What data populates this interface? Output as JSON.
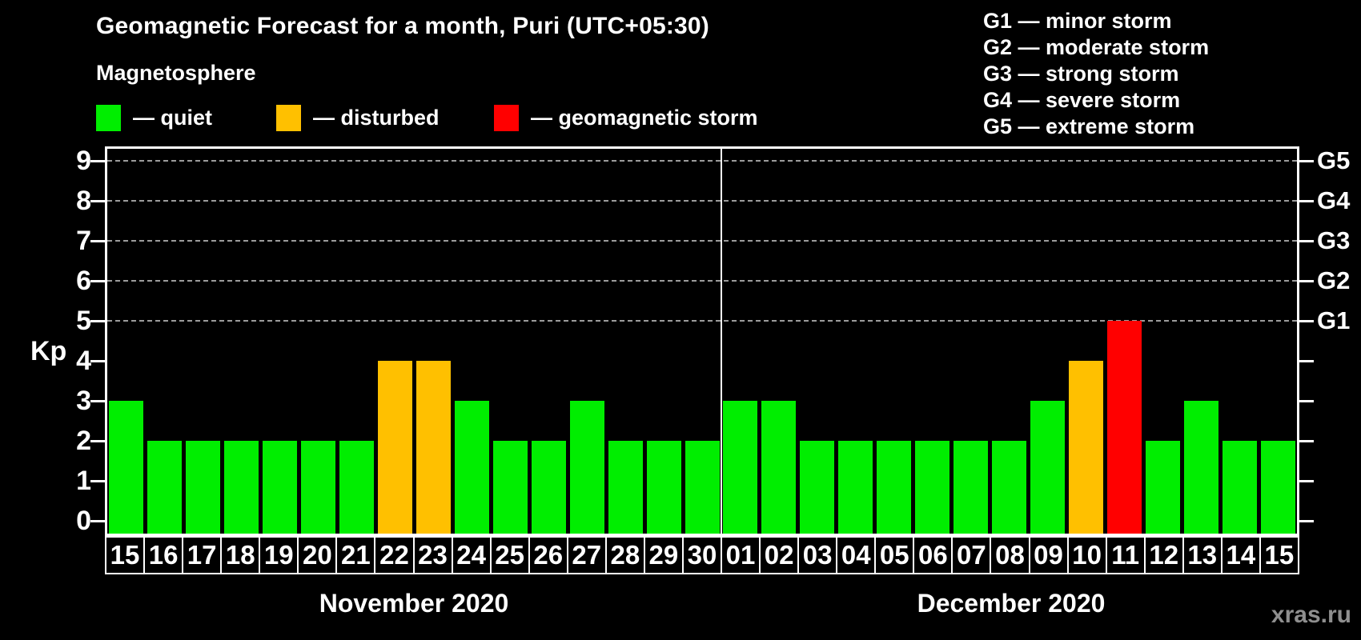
{
  "header": {
    "title": "Geomagnetic Forecast for a month, Puri (UTC+05:30)",
    "subtitle": "Magnetosphere"
  },
  "legend": {
    "items": [
      {
        "name": "quiet",
        "label": "— quiet",
        "color": "#00ee00"
      },
      {
        "name": "disturbed",
        "label": "— disturbed",
        "color": "#ffc000"
      },
      {
        "name": "storm",
        "label": "— geomagnetic storm",
        "color": "#ff0000"
      }
    ]
  },
  "g_scale_legend": {
    "lines": [
      "G1 — minor storm",
      "G2 — moderate storm",
      "G3 — strong storm",
      "G4 — severe storm",
      "G5 — extreme storm"
    ]
  },
  "chart_data": {
    "type": "bar",
    "title": "Geomagnetic Forecast for a month, Puri (UTC+05:30)",
    "ylabel": "Kp",
    "ylim": [
      0,
      9
    ],
    "yticks": [
      0,
      1,
      2,
      3,
      4,
      5,
      6,
      7,
      8,
      9
    ],
    "grid_levels": [
      5,
      6,
      7,
      8,
      9
    ],
    "grid_on": true,
    "right_axis_labels": [
      {
        "kp": 5,
        "label": "G1"
      },
      {
        "kp": 6,
        "label": "G2"
      },
      {
        "kp": 7,
        "label": "G3"
      },
      {
        "kp": 8,
        "label": "G4"
      },
      {
        "kp": 9,
        "label": "G5"
      }
    ],
    "status_colors": {
      "quiet": "#00ee00",
      "disturbed": "#ffc000",
      "storm": "#ff0000"
    },
    "months": [
      {
        "label": "November 2020",
        "days": [
          "15",
          "16",
          "17",
          "18",
          "19",
          "20",
          "21",
          "22",
          "23",
          "24",
          "25",
          "26",
          "27",
          "28",
          "29",
          "30"
        ],
        "kp_values": [
          3,
          2,
          2,
          2,
          2,
          2,
          2,
          4,
          4,
          3,
          2,
          2,
          3,
          2,
          2,
          2
        ],
        "status": [
          "quiet",
          "quiet",
          "quiet",
          "quiet",
          "quiet",
          "quiet",
          "quiet",
          "disturbed",
          "disturbed",
          "quiet",
          "quiet",
          "quiet",
          "quiet",
          "quiet",
          "quiet",
          "quiet"
        ]
      },
      {
        "label": "December 2020",
        "days": [
          "01",
          "02",
          "03",
          "04",
          "05",
          "06",
          "07",
          "08",
          "09",
          "10",
          "11",
          "12",
          "13",
          "14",
          "15"
        ],
        "kp_values": [
          3,
          3,
          2,
          2,
          2,
          2,
          2,
          2,
          3,
          4,
          5,
          2,
          3,
          2,
          2
        ],
        "status": [
          "quiet",
          "quiet",
          "quiet",
          "quiet",
          "quiet",
          "quiet",
          "quiet",
          "quiet",
          "quiet",
          "disturbed",
          "storm",
          "quiet",
          "quiet",
          "quiet",
          "quiet"
        ]
      }
    ]
  },
  "watermark": "xras.ru"
}
